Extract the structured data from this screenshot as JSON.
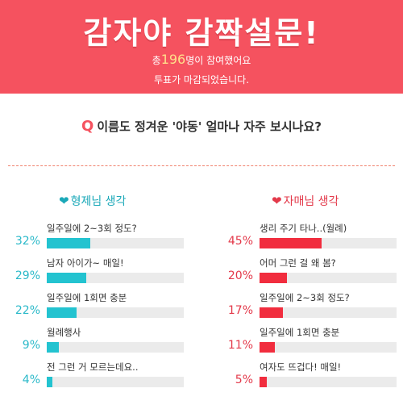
{
  "banner": {
    "title": "감자야 감짝설문!",
    "count_prefix": "총",
    "count": "196",
    "count_suffix": "명이 참여했어요",
    "status": "투표가 마감되었습니다.",
    "color": "#f5525f"
  },
  "question": {
    "mark": "Q",
    "text": "이름도 정겨운 '야동' 얼마나 자주 보시나요?"
  },
  "left": {
    "heading": "형제님 생각",
    "icon": "heart-icon",
    "color": "#23c3d0",
    "items": [
      {
        "label": "일주일에 2~3회 정도?",
        "percent_label": "32%",
        "percent": 32
      },
      {
        "label": "남자 아이가~ 매일!",
        "percent_label": "29%",
        "percent": 29
      },
      {
        "label": "일주일에 1회면 충분",
        "percent_label": "22%",
        "percent": 22
      },
      {
        "label": "월례행사",
        "percent_label": "9%",
        "percent": 9
      },
      {
        "label": "전 그런 거 모르는데요..",
        "percent_label": "4%",
        "percent": 4
      }
    ]
  },
  "right": {
    "heading": "자매님 생각",
    "icon": "heart-icon",
    "color": "#f12d3e",
    "items": [
      {
        "label": "생리 주기 타나..(월례)",
        "percent_label": "45%",
        "percent": 45
      },
      {
        "label": "어머 그런 걸 왜 봄?",
        "percent_label": "20%",
        "percent": 20
      },
      {
        "label": "일주일에 2~3회 정도?",
        "percent_label": "17%",
        "percent": 17
      },
      {
        "label": "일주일에 1회면 충분",
        "percent_label": "11%",
        "percent": 11
      },
      {
        "label": "여자도 뜨겁다! 매일!",
        "percent_label": "5%",
        "percent": 5
      }
    ]
  }
}
